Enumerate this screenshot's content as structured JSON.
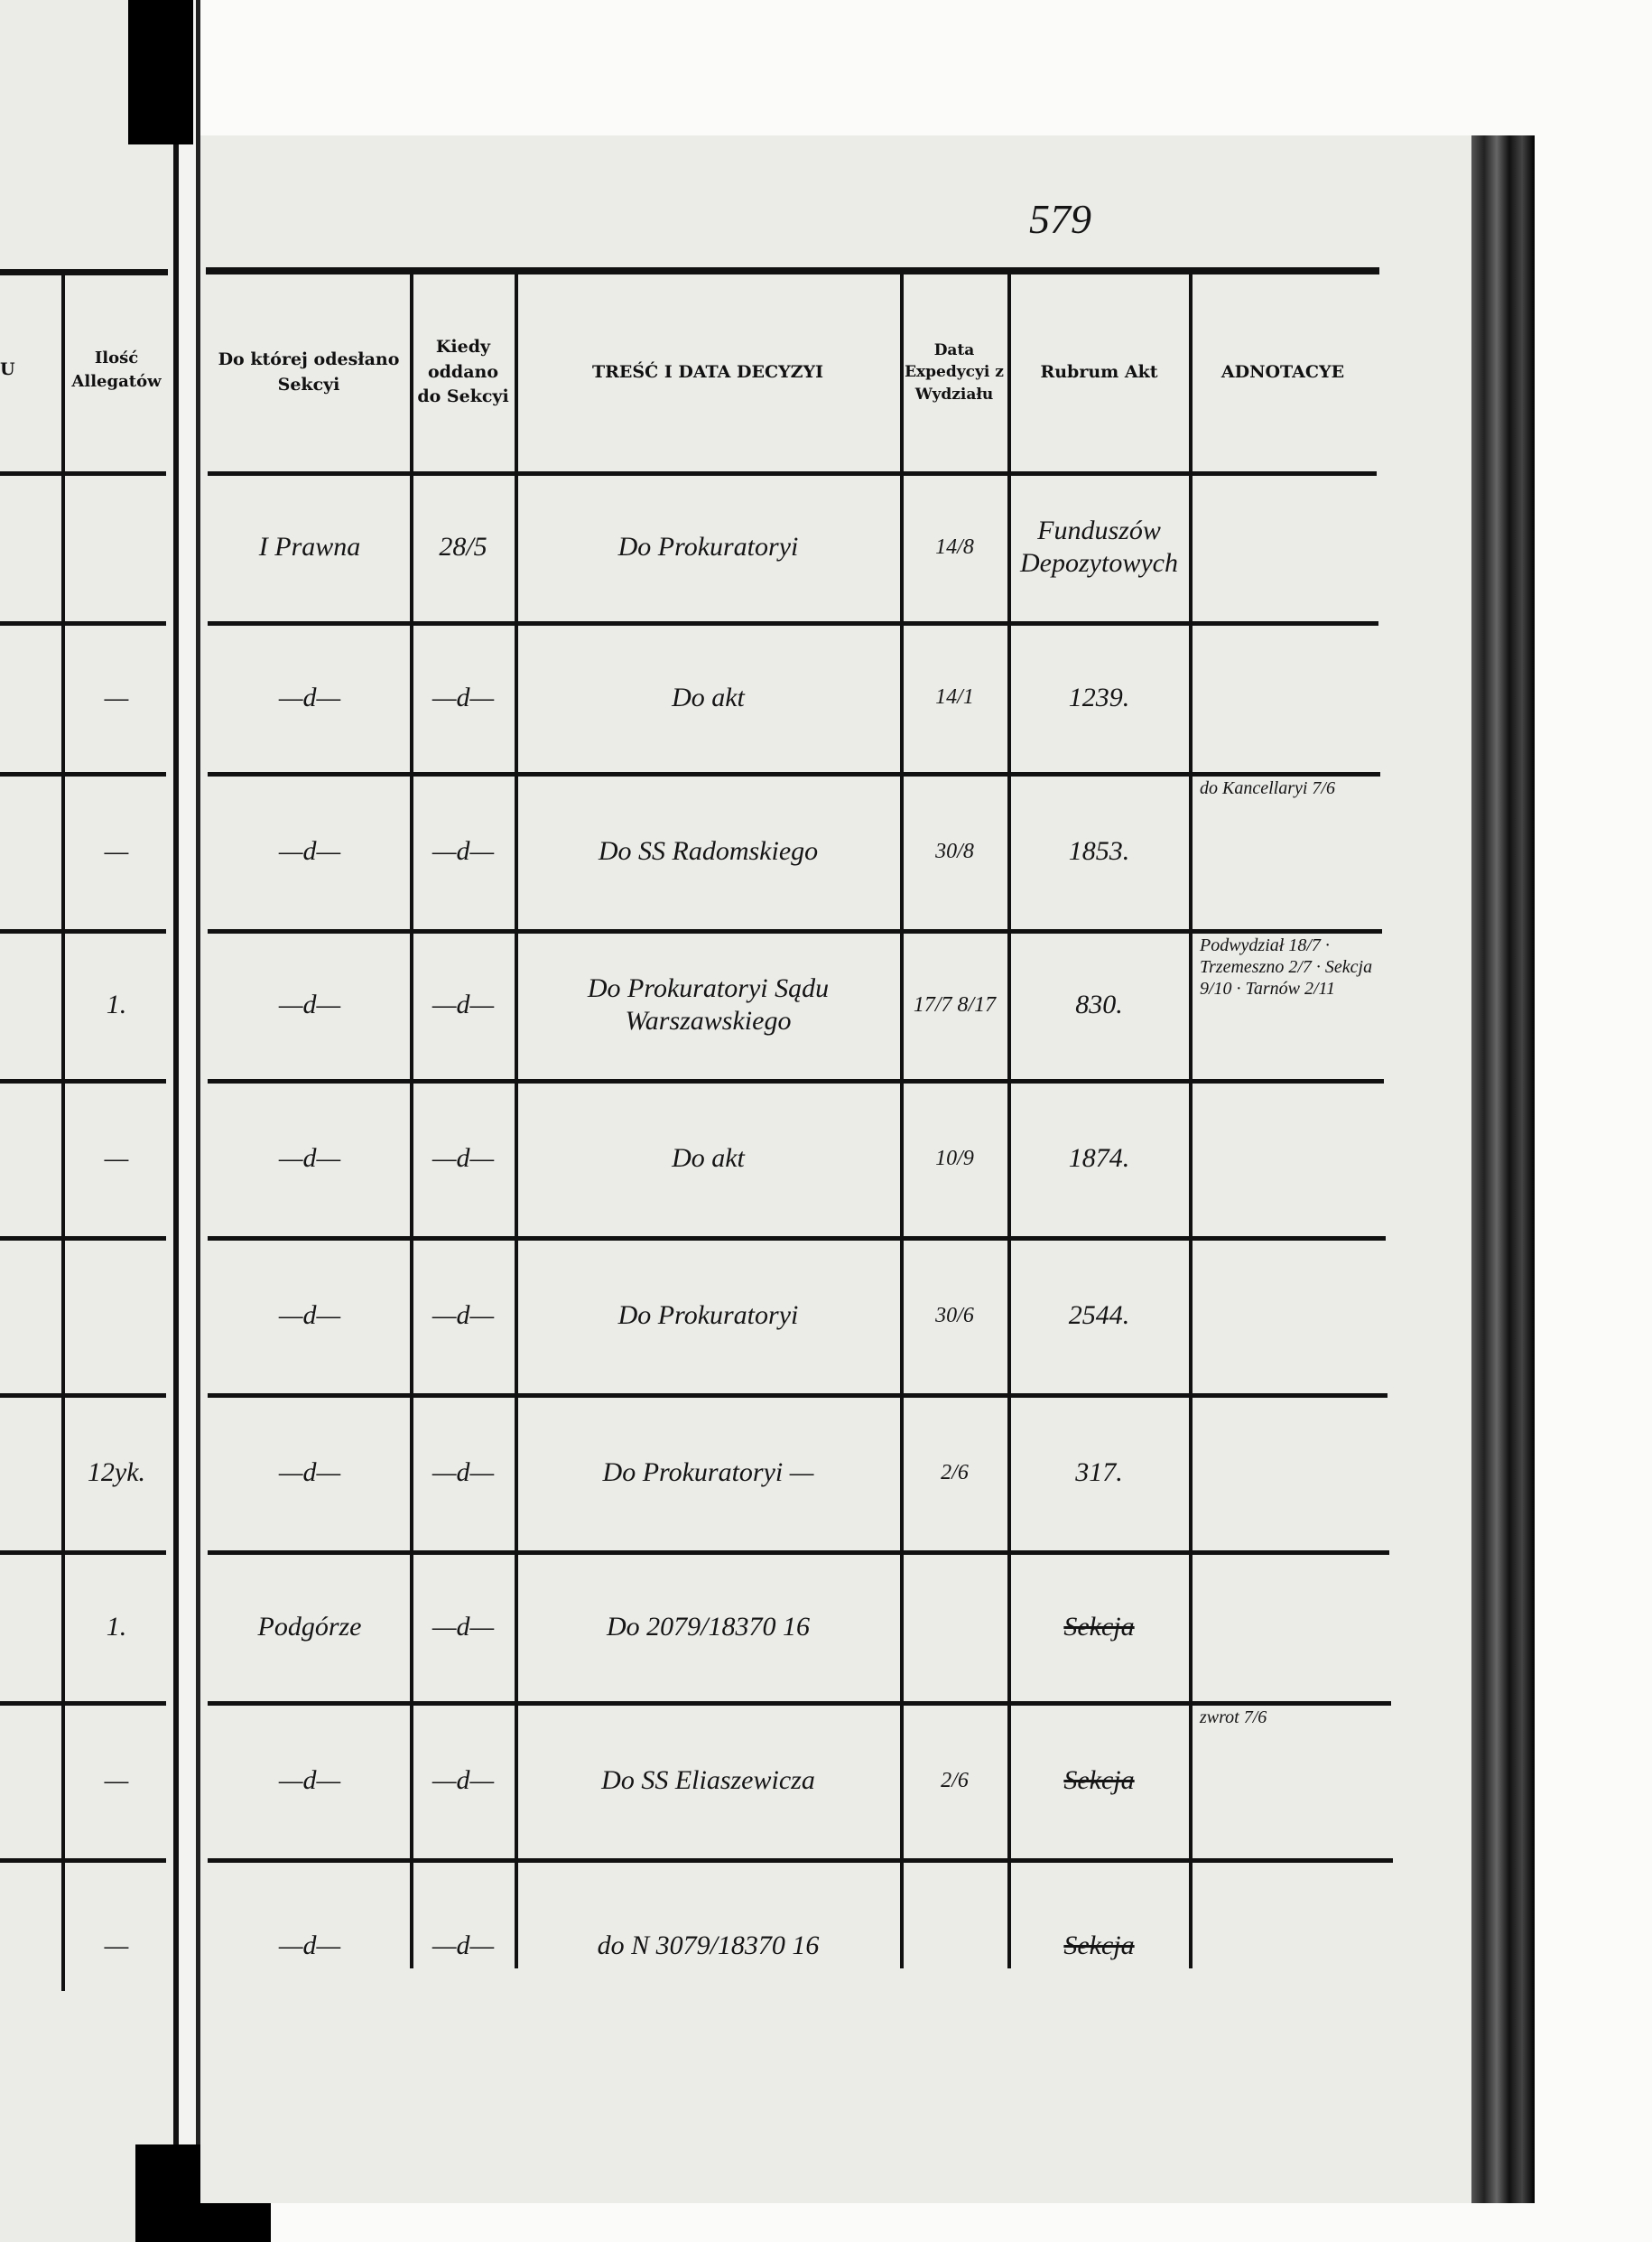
{
  "page_number": "579",
  "left_page": {
    "header_partial": "U",
    "allegatow_header": "Ilość Allegatów",
    "allegatow_values": [
      "",
      "—",
      "—",
      "1.",
      "—",
      "",
      "12yk.",
      "1.",
      "—",
      "—"
    ]
  },
  "headers": {
    "do_ktorej": "Do której odesłano Sekcyi",
    "kiedy": "Kiedy oddano do Sekcyi",
    "tresc": "TREŚĆ I DATA DECYZYI",
    "data_expedycyi": "Data Expedycyi z Wydziału",
    "rubrum": "Rubrum Akt",
    "adnotacye": "ADNOTACYE"
  },
  "rows": [
    {
      "sekcja": "I Prawna",
      "kiedy": "28/5",
      "tresc": "Do Prokuratoryi",
      "data": "14/8",
      "rubrum": "Funduszów Depozytowych",
      "adnotacye": ""
    },
    {
      "sekcja": "—d—",
      "kiedy": "—d—",
      "tresc": "Do akt",
      "data": "14/1",
      "rubrum": "1239.",
      "adnotacye": ""
    },
    {
      "sekcja": "—d—",
      "kiedy": "—d—",
      "tresc": "Do SS Radomskiego",
      "data": "30/8",
      "rubrum": "1853.",
      "adnotacye": "do Kancellaryi 7/6"
    },
    {
      "sekcja": "—d—",
      "kiedy": "—d—",
      "tresc": "Do Prokuratoryi Sądu Warszawskiego",
      "data": "17/7 8/17",
      "rubrum": "830.",
      "adnotacye": "Podwydział 18/7 · Trzemeszno 2/7 · Sekcja 9/10 · Tarnów 2/11"
    },
    {
      "sekcja": "—d—",
      "kiedy": "—d—",
      "tresc": "Do akt",
      "data": "10/9",
      "rubrum": "1874.",
      "adnotacye": ""
    },
    {
      "sekcja": "—d—",
      "kiedy": "—d—",
      "tresc": "Do Prokuratoryi",
      "data": "30/6",
      "rubrum": "2544.",
      "adnotacye": ""
    },
    {
      "sekcja": "—d—",
      "kiedy": "—d—",
      "tresc": "Do Prokuratoryi —",
      "data": "2/6",
      "rubrum": "317.",
      "adnotacye": ""
    },
    {
      "sekcja": "Podgórze",
      "kiedy": "—d—",
      "tresc": "Do 2079/18370 16",
      "data": "",
      "rubrum": "Sekcja",
      "adnotacye": ""
    },
    {
      "sekcja": "—d—",
      "kiedy": "—d—",
      "tresc": "Do SS Eliaszewicza",
      "data": "2/6",
      "rubrum": "Sekcja",
      "adnotacye": "zwrot 7/6"
    },
    {
      "sekcja": "—d—",
      "kiedy": "—d—",
      "tresc": "do N 3079/18370 16",
      "data": "",
      "rubrum": "Sekcja",
      "adnotacye": ""
    }
  ]
}
